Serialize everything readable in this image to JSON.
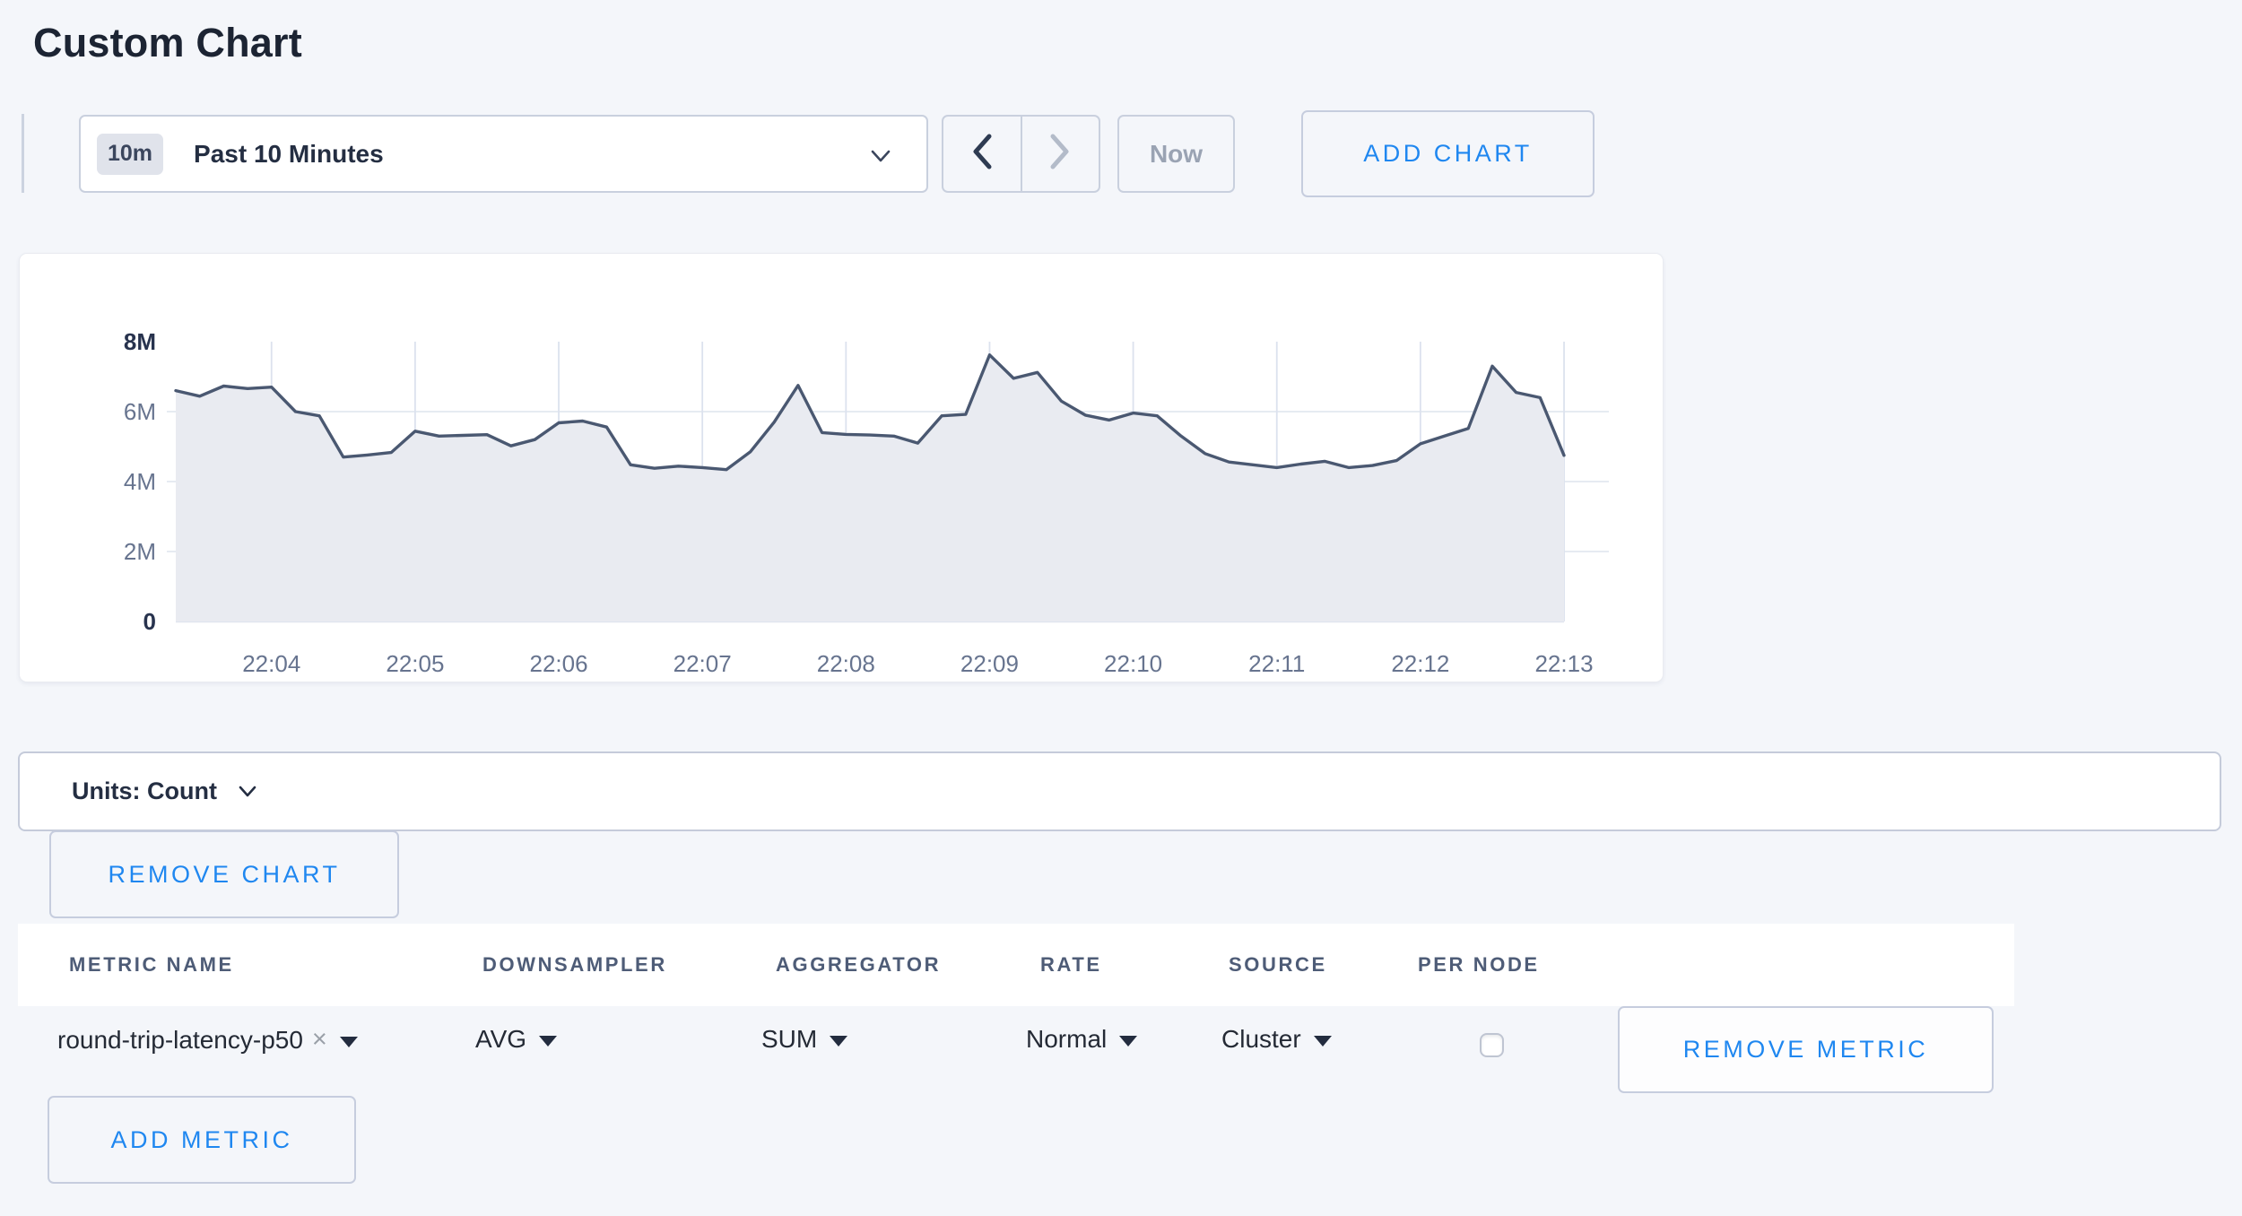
{
  "page": {
    "title": "Custom Chart",
    "background_color": "#f4f6fa",
    "accent_blue": "#1f87f0"
  },
  "icons": {
    "time_dropdown": "chevron-down-icon",
    "pager_prev": "chevron-left-icon",
    "pager_next": "chevron-right-icon",
    "units_dropdown": "chevron-down-icon",
    "metric_remove": "x-icon",
    "select_caret": "caret-down-icon"
  },
  "toolbar": {
    "range_badge": "10m",
    "range_label": "Past 10 Minutes",
    "now_label": "Now",
    "add_chart_label": "ADD CHART",
    "prev_enabled": true,
    "next_enabled": false
  },
  "chart_data": {
    "type": "area",
    "series_name": "round-trip-latency-p50",
    "unit": "Count",
    "start_time": "22:03:20",
    "interval_seconds": 10,
    "values_millions": [
      6.6,
      6.44,
      6.73,
      6.66,
      6.7,
      6.0,
      5.88,
      4.7,
      4.76,
      4.83,
      5.44,
      5.3,
      5.32,
      5.34,
      5.02,
      5.2,
      5.68,
      5.73,
      5.56,
      4.48,
      4.38,
      4.44,
      4.4,
      4.34,
      4.85,
      5.7,
      6.75,
      5.4,
      5.35,
      5.33,
      5.3,
      5.1,
      5.88,
      5.92,
      7.62,
      6.95,
      7.12,
      6.3,
      5.9,
      5.76,
      5.96,
      5.88,
      5.3,
      4.8,
      4.56,
      4.48,
      4.4,
      4.5,
      4.58,
      4.4,
      4.46,
      4.6,
      5.08,
      5.3,
      5.52,
      7.3,
      6.55,
      6.4,
      4.75
    ],
    "ylim_millions": [
      0,
      8
    ],
    "y_tick_values_millions": [
      0,
      2,
      4,
      6,
      8
    ],
    "y_tick_labels": [
      "0",
      "2M",
      "4M",
      "6M",
      "8M"
    ],
    "emphasized_y_ticks": [
      "0",
      "8M"
    ],
    "x_tick_labels": [
      "22:04",
      "22:05",
      "22:06",
      "22:07",
      "22:08",
      "22:09",
      "22:10",
      "22:11",
      "22:12",
      "22:13"
    ],
    "x_tick_indices": [
      4,
      10,
      16,
      22,
      28,
      34,
      40,
      46,
      52,
      58
    ],
    "grid": true,
    "line_color": "#4a5871",
    "fill_color": "#e9ebf1",
    "v_grid_color": "#dce2ee",
    "h_grid_color": "#e3e8f1",
    "tick_label_color": "#67748f",
    "emphasized_label_color": "#28334e"
  },
  "units_bar": {
    "label": "Units: Count"
  },
  "chart_actions": {
    "remove_chart_label": "REMOVE CHART"
  },
  "metrics_table": {
    "columns": [
      "METRIC NAME",
      "DOWNSAMPLER",
      "AGGREGATOR",
      "RATE",
      "SOURCE",
      "PER NODE"
    ],
    "rows": [
      {
        "metric_name": "round-trip-latency-p50",
        "remove_metric_icon": "×",
        "downsampler": "AVG",
        "aggregator": "SUM",
        "rate": "Normal",
        "source": "Cluster",
        "per_node_checked": false,
        "remove_label": "REMOVE METRIC"
      }
    ],
    "add_metric_label": "ADD METRIC"
  }
}
